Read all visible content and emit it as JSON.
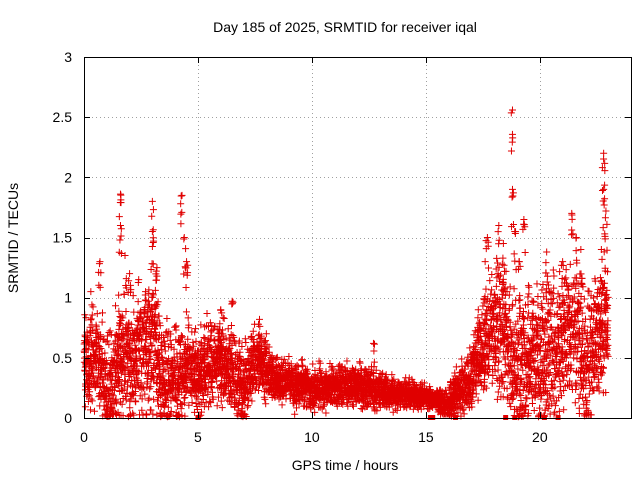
{
  "chart_data": {
    "type": "scatter",
    "title": "Day 185 of 2025, SRMTID for receiver iqal",
    "xlabel": "GPS time / hours",
    "ylabel": "SRMTID / TECUs",
    "xlim": [
      0,
      24
    ],
    "ylim": [
      0,
      3
    ],
    "xticks": [
      0,
      5,
      10,
      15,
      20
    ],
    "yticks": [
      0,
      0.5,
      1,
      1.5,
      2,
      2.5,
      3
    ],
    "xtick_labels": [
      "0",
      "5",
      "10",
      "15",
      "20"
    ],
    "ytick_labels": [
      "0",
      "0.5",
      "1",
      "1.5",
      "2",
      "2.5",
      "3"
    ],
    "grid": true,
    "marker": "plus",
    "color": "#e00000",
    "series": [
      {
        "name": "SRMTID",
        "profile": [
          [
            0.0,
            0.45
          ],
          [
            0.5,
            0.5
          ],
          [
            1.0,
            0.25
          ],
          [
            1.5,
            0.45
          ],
          [
            2.0,
            0.45
          ],
          [
            2.5,
            0.55
          ],
          [
            3.0,
            0.6
          ],
          [
            3.5,
            0.25
          ],
          [
            4.0,
            0.4
          ],
          [
            4.5,
            0.45
          ],
          [
            5.0,
            0.35
          ],
          [
            5.5,
            0.45
          ],
          [
            6.0,
            0.5
          ],
          [
            6.5,
            0.4
          ],
          [
            7.0,
            0.25
          ],
          [
            7.5,
            0.45
          ],
          [
            8.0,
            0.4
          ],
          [
            8.5,
            0.3
          ],
          [
            9.0,
            0.3
          ],
          [
            10.0,
            0.25
          ],
          [
            11.0,
            0.27
          ],
          [
            12.0,
            0.27
          ],
          [
            13.0,
            0.22
          ],
          [
            14.0,
            0.2
          ],
          [
            15.0,
            0.17
          ],
          [
            16.0,
            0.13
          ],
          [
            17.0,
            0.35
          ],
          [
            17.5,
            0.55
          ],
          [
            18.0,
            0.85
          ],
          [
            18.5,
            0.7
          ],
          [
            19.0,
            0.35
          ],
          [
            19.5,
            0.5
          ],
          [
            20.0,
            0.5
          ],
          [
            20.5,
            0.55
          ],
          [
            21.0,
            0.6
          ],
          [
            21.5,
            0.8
          ],
          [
            22.0,
            0.4
          ],
          [
            22.5,
            0.6
          ],
          [
            22.8,
            0.8
          ]
        ],
        "spread": [
          [
            0.0,
            0.35
          ],
          [
            3.3,
            0.5
          ],
          [
            4.6,
            0.35
          ],
          [
            7.0,
            0.28
          ],
          [
            8.5,
            0.18
          ],
          [
            12.0,
            0.16
          ],
          [
            15.5,
            0.08
          ],
          [
            17.0,
            0.25
          ],
          [
            18.5,
            0.55
          ],
          [
            23.0,
            0.55
          ]
        ],
        "peaks": [
          [
            0.3,
            1.05
          ],
          [
            0.7,
            1.3
          ],
          [
            1.6,
            1.86
          ],
          [
            1.6,
            1.6
          ],
          [
            1.8,
            1.35
          ],
          [
            2.0,
            1.2
          ],
          [
            2.4,
            1.15
          ],
          [
            2.7,
            1.05
          ],
          [
            3.0,
            1.8
          ],
          [
            3.0,
            1.55
          ],
          [
            3.2,
            1.25
          ],
          [
            4.3,
            1.85
          ],
          [
            4.4,
            1.5
          ],
          [
            4.5,
            1.3
          ],
          [
            6.0,
            0.9
          ],
          [
            6.5,
            0.97
          ],
          [
            7.7,
            0.82
          ],
          [
            8.0,
            0.7
          ],
          [
            12.7,
            0.62
          ],
          [
            17.3,
            0.9
          ],
          [
            17.6,
            1.3
          ],
          [
            17.7,
            1.5
          ],
          [
            18.2,
            1.6
          ],
          [
            18.4,
            1.45
          ],
          [
            18.8,
            1.9
          ],
          [
            18.9,
            1.55
          ],
          [
            18.8,
            2.56
          ],
          [
            19.1,
            1.3
          ],
          [
            19.3,
            1.65
          ],
          [
            19.5,
            1.1
          ],
          [
            20.3,
            1.38
          ],
          [
            21.0,
            1.3
          ],
          [
            21.4,
            1.7
          ],
          [
            21.6,
            1.5
          ],
          [
            21.8,
            1.4
          ],
          [
            22.7,
            1.4
          ],
          [
            22.8,
            1.9
          ],
          [
            22.8,
            2.2
          ],
          [
            22.9,
            1.72
          ]
        ],
        "zero_points": [
          5.0,
          15.2,
          15.3,
          16.3,
          18.5,
          18.9,
          20.2,
          20.8
        ]
      }
    ]
  }
}
